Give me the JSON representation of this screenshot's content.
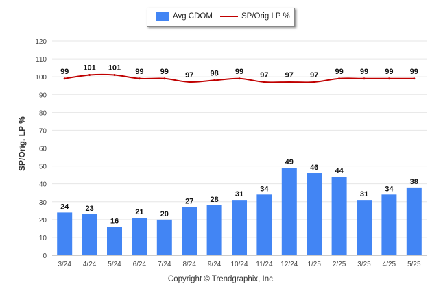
{
  "legend": {
    "bar_label": "Avg CDOM",
    "line_label": "SP/Orig LP %"
  },
  "copyright": "Copyright © Trendgraphix, Inc.",
  "colors": {
    "bar": "#4285f4",
    "line": "#c00000",
    "grid": "#e6e6e6",
    "axis": "#999999"
  },
  "chart_data": {
    "type": "bar",
    "categories": [
      "3/24",
      "4/24",
      "5/24",
      "6/24",
      "7/24",
      "8/24",
      "9/24",
      "10/24",
      "11/24",
      "12/24",
      "1/25",
      "2/25",
      "3/25",
      "4/25",
      "5/25"
    ],
    "ylabel": "SP/Orig. LP %",
    "xlabel": "",
    "ylim": [
      0,
      120
    ],
    "yticks": [
      0,
      10,
      20,
      30,
      40,
      50,
      60,
      70,
      80,
      90,
      100,
      110,
      120
    ],
    "grid": true,
    "legend_position": "top-center",
    "series": [
      {
        "name": "Avg CDOM",
        "type": "bar",
        "values": [
          24,
          23,
          16,
          21,
          20,
          27,
          28,
          31,
          34,
          49,
          46,
          44,
          31,
          34,
          38
        ]
      },
      {
        "name": "SP/Orig LP %",
        "type": "line",
        "values": [
          99,
          101,
          101,
          99,
          99,
          97,
          98,
          99,
          97,
          97,
          97,
          99,
          99,
          99,
          99
        ]
      }
    ]
  }
}
